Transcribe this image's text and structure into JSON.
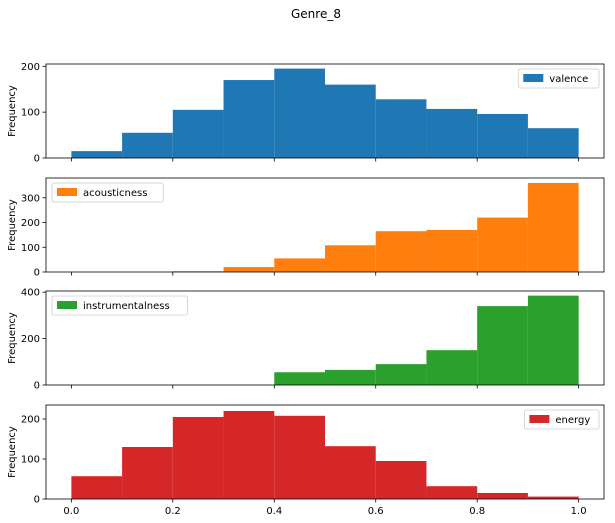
{
  "figure": {
    "title": "Genre_8"
  },
  "chart_data": {
    "type": "bar",
    "subtype": "histogram",
    "title": "Genre_8",
    "bin_edges": [
      0.0,
      0.1,
      0.2,
      0.3,
      0.4,
      0.5,
      0.6,
      0.7,
      0.8,
      0.9,
      1.0
    ],
    "x_ticks": [
      0.0,
      0.2,
      0.4,
      0.6,
      0.8,
      1.0
    ],
    "x_tick_labels": [
      "0.0",
      "0.2",
      "0.4",
      "0.6",
      "0.8",
      "1.0"
    ],
    "xlim": [
      -0.05,
      1.05
    ],
    "ylabel": "Frequency",
    "grid": false,
    "series": [
      {
        "name": "valence",
        "color": "#1f77b4",
        "values": [
          15,
          55,
          105,
          170,
          195,
          160,
          128,
          107,
          96,
          65
        ],
        "ylim": [
          0,
          205
        ],
        "y_ticks": [
          0,
          100,
          200
        ],
        "y_tick_labels": [
          "0",
          "100",
          "200"
        ],
        "legend": "top-right"
      },
      {
        "name": "acousticness",
        "color": "#ff7f0e",
        "values": [
          0,
          0,
          3,
          20,
          55,
          108,
          165,
          170,
          220,
          360
        ],
        "ylim": [
          0,
          380
        ],
        "y_ticks": [
          0,
          100,
          200,
          300
        ],
        "y_tick_labels": [
          "0",
          "100",
          "200",
          "300"
        ],
        "legend": "top-left"
      },
      {
        "name": "instrumentalness",
        "color": "#2ca02c",
        "values": [
          0,
          0,
          0,
          0,
          55,
          65,
          90,
          150,
          340,
          385
        ],
        "ylim": [
          0,
          405
        ],
        "y_ticks": [
          0,
          200,
          400
        ],
        "y_tick_labels": [
          "0",
          "200",
          "400"
        ],
        "legend": "top-left"
      },
      {
        "name": "energy",
        "color": "#d62728",
        "values": [
          57,
          130,
          205,
          220,
          208,
          132,
          95,
          32,
          15,
          6
        ],
        "ylim": [
          0,
          235
        ],
        "y_ticks": [
          0,
          100,
          200
        ],
        "y_tick_labels": [
          "0",
          "100",
          "200"
        ],
        "legend": "top-right"
      }
    ]
  }
}
